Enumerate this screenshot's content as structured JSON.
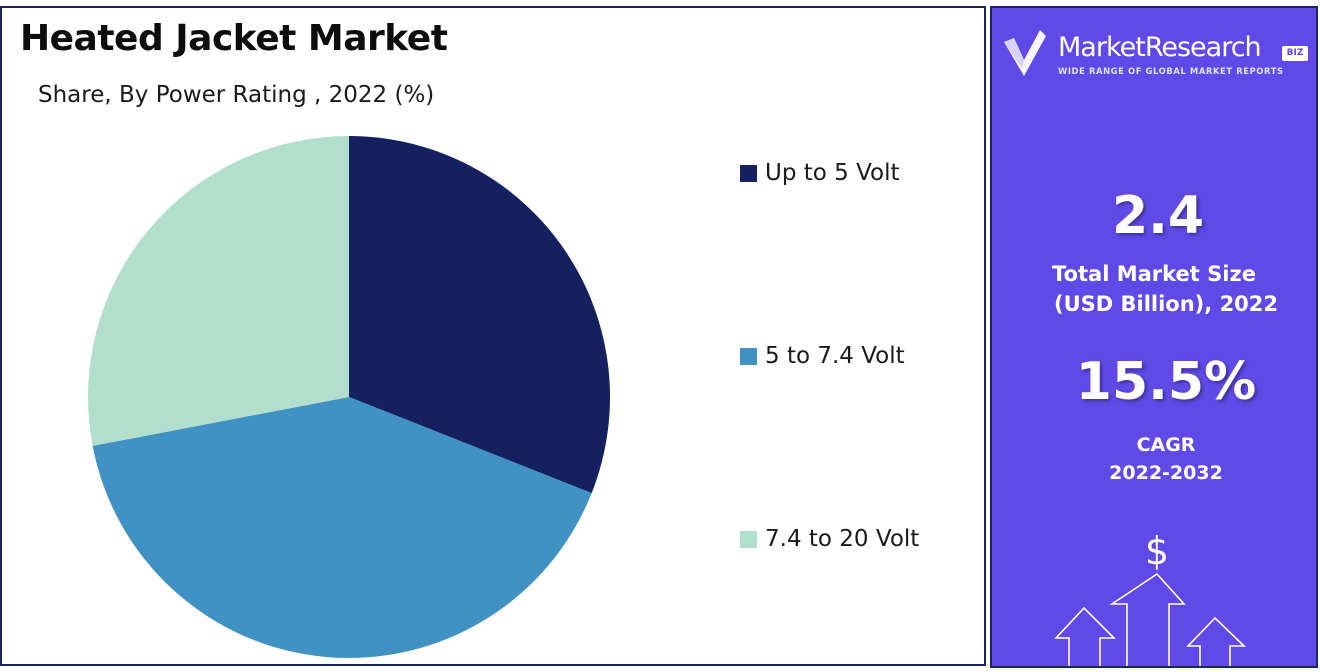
{
  "chart_data": {
    "type": "pie",
    "title": "Heated Jacket Market",
    "subtitle": "Share, By Power Rating , 2022 (%)",
    "categories": [
      "Up to 5 Volt",
      "5 to 7.4 Volt",
      "7.4 to 20 Volt"
    ],
    "values": [
      31,
      41,
      28
    ],
    "colors": [
      "#152060",
      "#3f92c2",
      "#b2dece"
    ],
    "legend_position": "right"
  },
  "side_panel": {
    "brand_name": "MarketResearch",
    "brand_badge": "BIZ",
    "brand_tagline": "WIDE RANGE OF GLOBAL MARKET REPORTS",
    "brand_icon": "check-v-logo-icon",
    "market_size_value": "2.4",
    "market_size_label_line1": "Total Market Size",
    "market_size_label_line2": "(USD Billion), 2022",
    "cagr_value": "15.5%",
    "cagr_label_line1": "CAGR",
    "cagr_label_line2": "2022-2032",
    "growth_icon": "dollar-growth-arrows-icon",
    "growth_symbol": "$",
    "background_color": "#6049e6"
  }
}
